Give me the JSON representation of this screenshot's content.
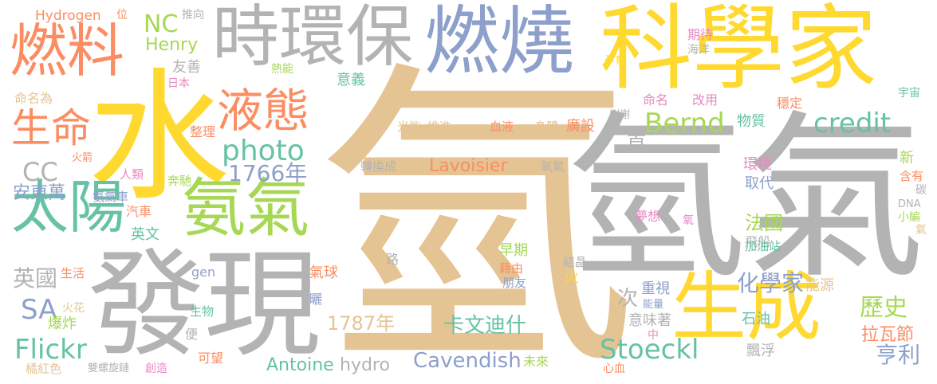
{
  "words": [
    {
      "text": "氫",
      "color": "#e5c494"
    },
    {
      "text": "氫氣",
      "color": "#b3b3b3"
    },
    {
      "text": "水",
      "color": "#ffd92f"
    },
    {
      "text": "科學家",
      "color": "#ffd92f"
    },
    {
      "text": "發現",
      "color": "#b3b3b3"
    },
    {
      "text": "燃燒",
      "color": "#8da0cb"
    },
    {
      "text": "時環保",
      "color": "#b3b3b3"
    },
    {
      "text": "燃料",
      "color": "#fc8d62"
    },
    {
      "text": "氨氣",
      "color": "#a6d854"
    },
    {
      "text": "生成",
      "color": "#ffd92f"
    },
    {
      "text": "太陽",
      "color": "#66c2a5"
    },
    {
      "text": "液態",
      "color": "#fc8d62"
    },
    {
      "text": "生命",
      "color": "#fc8d62"
    },
    {
      "text": "photo",
      "color": "#66c2a5"
    },
    {
      "text": "credit",
      "color": "#66c2a5"
    },
    {
      "text": "Bernd",
      "color": "#a6d854"
    },
    {
      "text": "Stoeckl",
      "color": "#66c2a5"
    },
    {
      "text": "Flickr",
      "color": "#66c2a5"
    },
    {
      "text": "NC",
      "color": "#a6d854"
    },
    {
      "text": "Henry",
      "color": "#a6d854"
    },
    {
      "text": "1766年",
      "color": "#8da0cb"
    },
    {
      "text": "CC",
      "color": "#b3b3b3"
    },
    {
      "text": "SA",
      "color": "#8da0cb"
    },
    {
      "text": "Cavendish",
      "color": "#8da0cb"
    },
    {
      "text": "卡文迪什",
      "color": "#66c2a5"
    },
    {
      "text": "1787年",
      "color": "#e5c494"
    },
    {
      "text": "Lavoisier",
      "color": "#fc8d62"
    },
    {
      "text": "Antoine",
      "color": "#66c2a5"
    },
    {
      "text": "hydro",
      "color": "#b3b3b3"
    },
    {
      "text": "歷史",
      "color": "#a6d854"
    },
    {
      "text": "化學家",
      "color": "#8da0cb"
    },
    {
      "text": "亨利",
      "color": "#8da0cb"
    },
    {
      "text": "法國",
      "color": "#a6d854"
    },
    {
      "text": "英國",
      "color": "#b3b3b3"
    },
    {
      "text": "安東萬",
      "color": "#8da0cb"
    },
    {
      "text": "拉瓦節",
      "color": "#fc8d62"
    },
    {
      "text": "首",
      "color": "#b3b3b3"
    },
    {
      "text": "次",
      "color": "#b3b3b3"
    },
    {
      "text": "Hydrogen",
      "color": "#fc8d62"
    },
    {
      "text": "位",
      "color": "#fc8d62"
    },
    {
      "text": "推向",
      "color": "#b3b3b3"
    },
    {
      "text": "友善",
      "color": "#b3b3b3"
    },
    {
      "text": "日本",
      "color": "#e78ac3"
    },
    {
      "text": "命名為",
      "color": "#e5c494"
    },
    {
      "text": "熱能",
      "color": "#a6d854"
    },
    {
      "text": "意義",
      "color": "#66c2a5"
    },
    {
      "text": "期待",
      "color": "#e78ac3"
    },
    {
      "text": "海洋",
      "color": "#b3b3b3"
    },
    {
      "text": "孕育",
      "color": "#ffd92f"
    },
    {
      "text": "宇宙",
      "color": "#66c2a5"
    },
    {
      "text": "命名",
      "color": "#e78ac3"
    },
    {
      "text": "改用",
      "color": "#e78ac3"
    },
    {
      "text": "穩定",
      "color": "#fc8d62"
    },
    {
      "text": "謝謝",
      "color": "#b3b3b3"
    },
    {
      "text": "物質",
      "color": "#66c2a5"
    },
    {
      "text": "光能",
      "color": "#e5c494"
    },
    {
      "text": "推進",
      "color": "#e5c494"
    },
    {
      "text": "血液",
      "color": "#fc8d62"
    },
    {
      "text": "身體",
      "color": "#e5c494"
    },
    {
      "text": "廣設",
      "color": "#fc8d62"
    },
    {
      "text": "整理",
      "color": "#fc8d62"
    },
    {
      "text": "火箭",
      "color": "#fc8d62"
    },
    {
      "text": "人類",
      "color": "#e78ac3"
    },
    {
      "text": "奔馳",
      "color": "#a6d854"
    },
    {
      "text": "轉換成",
      "color": "#b3b3b3"
    },
    {
      "text": "氧氣",
      "color": "#b3b3b3"
    },
    {
      "text": "環境",
      "color": "#e78ac3"
    },
    {
      "text": "取代",
      "color": "#8da0cb"
    },
    {
      "text": "新",
      "color": "#a6d854"
    },
    {
      "text": "含有",
      "color": "#fc8d62"
    },
    {
      "text": "碳",
      "color": "#b3b3b3"
    },
    {
      "text": "DNA",
      "color": "#b3b3b3"
    },
    {
      "text": "小編",
      "color": "#a6d854"
    },
    {
      "text": "氣",
      "color": "#e5c494"
    },
    {
      "text": "氨氣車",
      "color": "#8da0cb"
    },
    {
      "text": "汽車",
      "color": "#fc8d62"
    },
    {
      "text": "英文",
      "color": "#66c2a5"
    },
    {
      "text": "飛船",
      "color": "#b3b3b3"
    },
    {
      "text": "夢想",
      "color": "#e78ac3"
    },
    {
      "text": "氧",
      "color": "#e78ac3"
    },
    {
      "text": "加油站",
      "color": "#66c2a5"
    },
    {
      "text": "早期",
      "color": "#a6d854"
    },
    {
      "text": "藉由",
      "color": "#fc8d62"
    },
    {
      "text": "結晶",
      "color": "#b3b3b3"
    },
    {
      "text": "氣球",
      "color": "#fc8d62"
    },
    {
      "text": "路",
      "color": "#b3b3b3"
    },
    {
      "text": "朋友",
      "color": "#8da0cb"
    },
    {
      "text": "gen",
      "color": "#8da0cb"
    },
    {
      "text": "生活",
      "color": "#fc8d62"
    },
    {
      "text": "火",
      "color": "#ffd92f"
    },
    {
      "text": "重視",
      "color": "#8da0cb"
    },
    {
      "text": "能源",
      "color": "#e5c494"
    },
    {
      "text": "曬",
      "color": "#8da0cb"
    },
    {
      "text": "火花",
      "color": "#e5c494"
    },
    {
      "text": "生物",
      "color": "#66c2a5"
    },
    {
      "text": "爆炸",
      "color": "#a6d854"
    },
    {
      "text": "便",
      "color": "#b3b3b3"
    },
    {
      "text": "能量",
      "color": "#8da0cb"
    },
    {
      "text": "意味著",
      "color": "#b3b3b3"
    },
    {
      "text": "石油",
      "color": "#66c2a5"
    },
    {
      "text": "中",
      "color": "#e78ac3"
    },
    {
      "text": "可望",
      "color": "#fc8d62"
    },
    {
      "text": "飄浮",
      "color": "#b3b3b3"
    },
    {
      "text": "未來",
      "color": "#a6d854"
    },
    {
      "text": "橘紅色",
      "color": "#e5c494"
    },
    {
      "text": "雙螺旋鏈",
      "color": "#b3b3b3"
    },
    {
      "text": "創造",
      "color": "#e78ac3"
    },
    {
      "text": "心血",
      "color": "#fc8d62"
    }
  ]
}
